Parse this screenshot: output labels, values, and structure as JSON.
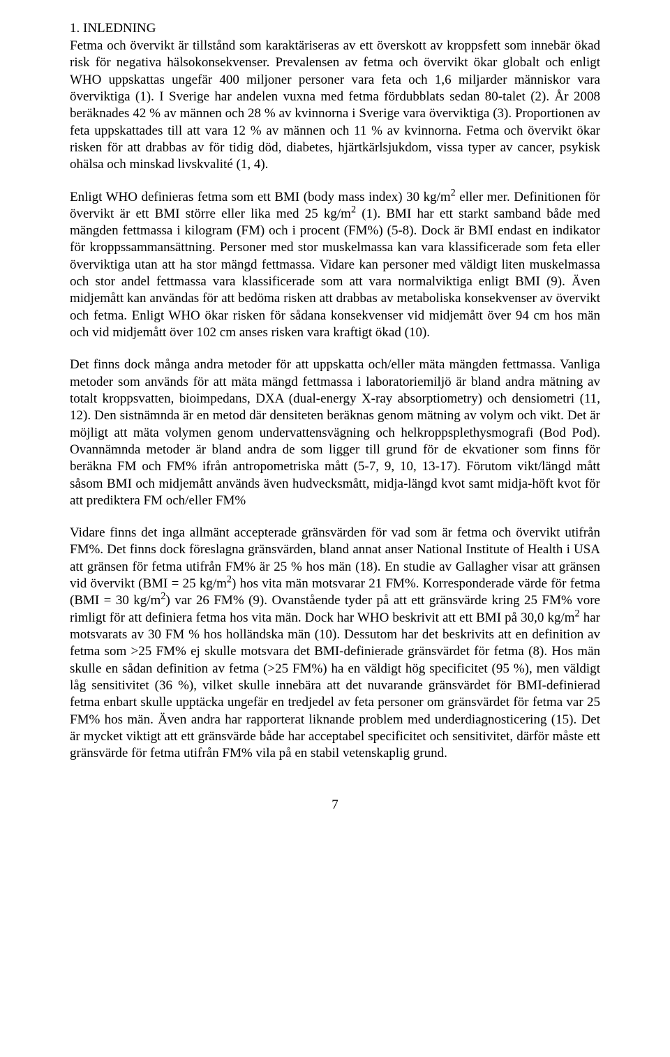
{
  "heading": "1. INLEDNING",
  "paragraphs": {
    "p1": "Fetma och övervikt är tillstånd som karaktäriseras av ett överskott av kroppsfett som innebär ökad risk för negativa hälsokonsekvenser. Prevalensen av fetma och övervikt ökar globalt och enligt WHO uppskattas ungefär 400 miljoner personer vara feta och 1,6 miljarder människor vara överviktiga (1). I Sverige har andelen vuxna med fetma fördubblats sedan 80-talet (2). År 2008 beräknades 42 % av männen och 28 % av kvinnorna i Sverige vara överviktiga (3). Proportionen av feta uppskattades till att vara 12 % av männen och 11 % av kvinnorna. Fetma och övervikt ökar risken för att drabbas av för tidig död, diabetes, hjärtkärlsjukdom, vissa typer av cancer, psykisk ohälsa och minskad livskvalité (1, 4).",
    "p2_part1": "Enligt WHO definieras fetma som ett BMI (body mass index) 30 kg/m",
    "p2_part2": " eller mer. Definitionen för övervikt är ett BMI större eller lika med 25 kg/m",
    "p2_part3": " (1). BMI har ett starkt samband både med mängden fettmassa i kilogram (FM) och i procent (FM%) (5-8). Dock är BMI endast en indikator för kroppssammansättning. Personer med stor muskelmassa kan vara klassificerade som feta eller överviktiga utan att ha stor mängd fettmassa. Vidare kan personer med väldigt liten muskelmassa och stor andel fettmassa vara klassificerade som att vara normalviktiga enligt BMI (9). Även midjemått kan användas för att bedöma risken att drabbas av metaboliska konsekvenser av övervikt och fetma. Enligt WHO ökar risken för sådana konsekvenser vid midjemått över 94 cm hos män och vid midjemått över 102 cm anses risken vara kraftigt ökad (10).",
    "p3": "Det finns dock många andra metoder för att uppskatta och/eller mäta mängden fettmassa. Vanliga metoder som används för att mäta mängd fettmassa i laboratoriemiljö är bland andra mätning av totalt kroppsvatten, bioimpedans, DXA (dual-energy X-ray absorptiometry) och densiometri (11, 12). Den sistnämnda är en metod där densiteten beräknas genom mätning av volym och vikt. Det är möjligt att mäta volymen genom undervattensvägning och helkroppsplethysmografi (Bod Pod). Ovannämnda metoder är bland andra de som ligger till grund för de ekvationer som finns för beräkna FM och FM% ifrån antropometriska mått (5-7, 9, 10, 13-17). Förutom vikt/längd mått såsom BMI och midjemått används även hudvecksmått, midja-längd kvot samt midja-höft kvot för att prediktera FM och/eller FM%",
    "p4_part1": "Vidare finns det inga allmänt accepterade gränsvärden för vad som är fetma och övervikt utifrån FM%. Det finns dock föreslagna gränsvärden, bland annat anser National Institute of Health i USA att gränsen för fetma utifrån FM% är 25 % hos män (18). En studie av Gallagher visar att gränsen vid övervikt (BMI = 25 kg/m",
    "p4_part2": ") hos vita män motsvarar 21 FM%. Korresponderade värde för fetma (BMI = 30 kg/m",
    "p4_part3": ") var 26 FM% (9). Ovanstående tyder på att ett gränsvärde kring 25 FM% vore rimligt för att definiera fetma hos vita män. Dock har WHO beskrivit att ett BMI på 30,0 kg/m",
    "p4_part4": " har motsvarats av 30 FM % hos holländska män (10). Dessutom har det beskrivits att en definition av fetma som >25 FM% ej skulle motsvara det BMI-definierade gränsvärdet för fetma (8). Hos män skulle en sådan definition av fetma (>25 FM%) ha en väldigt hög specificitet (95 %), men väldigt låg sensitivitet (36 %), vilket skulle innebära att det nuvarande gränsvärdet för BMI-definierad fetma enbart skulle upptäcka ungefär en tredjedel av feta personer om gränsvärdet för fetma var 25 FM% hos män. Även andra har rapporterat liknande problem med underdiagnosticering (15). Det är mycket viktigt att ett gränsvärde både har acceptabel specificitet och sensitivitet, därför måste ett gränsvärde för fetma utifrån FM% vila på en stabil vetenskaplig grund.",
    "sup2": "2"
  },
  "pageNumber": "7"
}
